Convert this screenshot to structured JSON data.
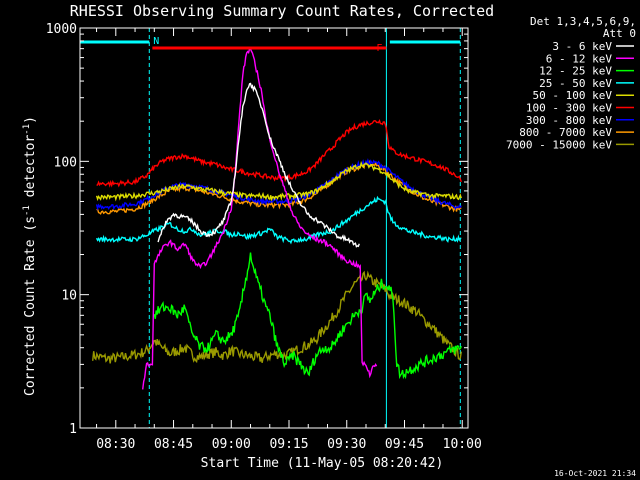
{
  "chart_data": {
    "type": "line",
    "title": "RHESSI Observing Summary Count Rates, Corrected",
    "xlabel": "Start Time (11-May-05 08:20:42)",
    "ylabel_main": "Corrected Count Rate (s",
    "ylabel_sup1": "-1",
    "ylabel_mid": " detector",
    "ylabel_sup2": "-1",
    "ylabel_end": ")",
    "ylog": true,
    "ylim": [
      1,
      1000
    ],
    "xlim_min": [
      20.7,
      121.5
    ],
    "x_unit": "minutes after 08:00",
    "xticks": [
      {
        "label": "08:30",
        "min": 30
      },
      {
        "label": "08:45",
        "min": 45
      },
      {
        "label": "09:00",
        "min": 60
      },
      {
        "label": "09:15",
        "min": 75
      },
      {
        "label": "09:30",
        "min": 90
      },
      {
        "label": "09:45",
        "min": 105
      },
      {
        "label": "10:00",
        "min": 120
      }
    ],
    "yticks": [
      {
        "label": "1",
        "val": 1
      },
      {
        "label": "10",
        "val": 10
      },
      {
        "label": "100",
        "val": 100
      },
      {
        "label": "1000",
        "val": 1000
      }
    ],
    "legend_header": [
      "Det 1,3,4,5,6,9,",
      "Att 0"
    ],
    "series": [
      {
        "name": "3 - 6 keV",
        "color": "#ffffff",
        "x": [
          20.7,
          38,
          39.5,
          41,
          43,
          45,
          48,
          50,
          52,
          54,
          56,
          58,
          60,
          61,
          62,
          63,
          64,
          65,
          66,
          67,
          68,
          69,
          70,
          72,
          74,
          76,
          78,
          80,
          83,
          86,
          88,
          90,
          92,
          93.5,
          94.5,
          95,
          98,
          101
        ],
        "y": [
          null,
          null,
          null,
          25,
          35,
          40,
          38,
          35,
          30,
          28,
          30,
          36,
          50,
          80,
          150,
          250,
          350,
          380,
          350,
          300,
          250,
          200,
          150,
          110,
          80,
          60,
          48,
          40,
          35,
          30,
          27,
          26,
          24,
          23,
          null,
          null,
          null,
          null
        ]
      },
      {
        "name": "6 - 12 keV",
        "color": "#ff00ff",
        "x": [
          20.7,
          36,
          37,
          38,
          39.5,
          40,
          42,
          44,
          46,
          48,
          50,
          52,
          54,
          56,
          58,
          60,
          61,
          62,
          63,
          64,
          65,
          66,
          67,
          68,
          69,
          70,
          72,
          74,
          76,
          78,
          80,
          82,
          84,
          86,
          88,
          90,
          92,
          93.5,
          94,
          95,
          96,
          97,
          98
        ],
        "y": [
          null,
          null,
          2,
          3,
          3,
          17,
          22,
          25,
          22,
          24,
          18,
          16,
          18,
          23,
          30,
          45,
          80,
          200,
          450,
          650,
          700,
          560,
          430,
          320,
          200,
          150,
          90,
          60,
          40,
          32,
          28,
          26,
          25,
          23,
          20,
          18,
          17,
          16,
          3,
          3,
          2.5,
          3,
          3
        ]
      },
      {
        "name": "12 - 25 keV",
        "color": "#00ff00",
        "x": [
          20.7,
          38,
          40,
          42,
          44,
          46,
          48,
          49,
          50,
          52,
          54,
          56,
          58,
          60,
          62,
          63,
          64,
          65,
          66,
          67,
          68,
          69,
          70,
          72,
          74,
          76,
          78,
          80,
          82,
          84,
          86,
          88,
          90,
          92,
          94,
          95,
          96,
          97,
          98,
          99,
          100,
          101,
          102,
          103,
          104,
          106,
          108,
          110,
          112,
          114,
          116,
          118,
          120
        ],
        "y": [
          null,
          null,
          7,
          8,
          8,
          7,
          8,
          6,
          5,
          4,
          4,
          5,
          4.5,
          5,
          7,
          10,
          14,
          20,
          15,
          12,
          10,
          8,
          7,
          4,
          3,
          3.5,
          3,
          2.5,
          3.5,
          4,
          4,
          5,
          6,
          7,
          8,
          10,
          9,
          10,
          11,
          12,
          12,
          11,
          10,
          3,
          2.5,
          2.7,
          2.9,
          3.1,
          3.3,
          3.5,
          3.7,
          3.9,
          4.0
        ]
      },
      {
        "name": "25 - 50 keV",
        "color": "#00ffff",
        "x": [
          20.7,
          25,
          30,
          35,
          38,
          40,
          42,
          44,
          46,
          48,
          50,
          52,
          54,
          56,
          58,
          60,
          62,
          64,
          66,
          68,
          70,
          72,
          74,
          76,
          78,
          80,
          82,
          84,
          86,
          88,
          90,
          92,
          94,
          96,
          98,
          100,
          101,
          102,
          104,
          106,
          108,
          110,
          112,
          114,
          116,
          118,
          120
        ],
        "y": [
          null,
          26,
          26,
          26,
          28,
          30,
          32,
          34,
          31,
          30,
          31,
          28,
          29,
          30,
          30,
          28,
          29,
          27,
          28,
          29,
          31,
          27,
          26,
          25,
          26,
          26,
          28,
          29,
          30,
          33,
          36,
          40,
          44,
          48,
          52,
          50,
          40,
          35,
          32,
          30,
          29,
          28,
          27,
          27,
          26,
          26,
          27
        ]
      },
      {
        "name": "50 - 100 keV",
        "color": "#dddd00",
        "x": [
          20.7,
          25,
          30,
          35,
          38,
          40,
          42,
          44,
          46,
          48,
          50,
          52,
          54,
          56,
          58,
          60,
          62,
          64,
          66,
          68,
          70,
          72,
          74,
          76,
          78,
          80,
          82,
          84,
          86,
          88,
          90,
          92,
          94,
          96,
          98,
          100,
          102,
          104,
          106,
          108,
          110,
          112,
          114,
          116,
          118,
          120
        ],
        "y": [
          null,
          54,
          54,
          55,
          57,
          58,
          60,
          62,
          64,
          65,
          64,
          62,
          61,
          60,
          58,
          57,
          56,
          55,
          55,
          55,
          54,
          54,
          55,
          55,
          56,
          57,
          60,
          65,
          70,
          78,
          85,
          90,
          95,
          92,
          88,
          82,
          72,
          65,
          60,
          58,
          57,
          55,
          55,
          55,
          54,
          54
        ]
      },
      {
        "name": "100 - 300 keV",
        "color": "#ff0000",
        "x": [
          20.7,
          25,
          30,
          35,
          38,
          40,
          42,
          44,
          46,
          48,
          50,
          52,
          54,
          56,
          58,
          60,
          62,
          64,
          66,
          68,
          70,
          72,
          74,
          76,
          78,
          80,
          82,
          84,
          86,
          88,
          90,
          92,
          94,
          96,
          98,
          100,
          101,
          102,
          104,
          106,
          108,
          110,
          112,
          114,
          116,
          118,
          120
        ],
        "y": [
          null,
          68,
          68,
          70,
          78,
          90,
          100,
          105,
          108,
          110,
          105,
          100,
          97,
          95,
          90,
          87,
          85,
          82,
          80,
          78,
          76,
          75,
          75,
          77,
          80,
          85,
          95,
          110,
          125,
          145,
          165,
          180,
          190,
          195,
          200,
          195,
          130,
          120,
          112,
          108,
          104,
          100,
          96,
          92,
          86,
          80,
          72
        ]
      },
      {
        "name": "300 - 800 keV",
        "color": "#0000ff",
        "x": [
          20.7,
          25,
          30,
          35,
          38,
          40,
          42,
          44,
          46,
          48,
          50,
          52,
          54,
          56,
          58,
          60,
          62,
          64,
          66,
          68,
          70,
          72,
          74,
          76,
          78,
          80,
          82,
          84,
          86,
          88,
          90,
          92,
          94,
          96,
          98,
          100,
          102,
          104,
          106,
          108,
          110,
          112,
          114,
          116,
          118,
          120
        ],
        "y": [
          null,
          46,
          46,
          48,
          52,
          56,
          60,
          64,
          66,
          67,
          66,
          64,
          62,
          60,
          58,
          56,
          54,
          52,
          51,
          50,
          50,
          50,
          50,
          51,
          53,
          56,
          60,
          66,
          72,
          80,
          87,
          92,
          96,
          98,
          97,
          90,
          80,
          72,
          65,
          60,
          56,
          53,
          50,
          48,
          46,
          45
        ]
      },
      {
        "name": "800 - 7000 keV",
        "color": "#ff9900",
        "x": [
          20.7,
          25,
          30,
          35,
          38,
          40,
          42,
          44,
          46,
          48,
          50,
          52,
          54,
          56,
          58,
          60,
          62,
          64,
          66,
          68,
          70,
          72,
          74,
          76,
          78,
          80,
          82,
          84,
          86,
          88,
          90,
          92,
          94,
          96,
          98,
          100,
          102,
          104,
          106,
          108,
          110,
          112,
          114,
          116,
          118,
          120
        ],
        "y": [
          null,
          42,
          42,
          44,
          48,
          52,
          56,
          60,
          62,
          63,
          62,
          60,
          58,
          56,
          54,
          52,
          50,
          49,
          48,
          47,
          47,
          47,
          47,
          48,
          50,
          53,
          57,
          63,
          70,
          78,
          84,
          88,
          92,
          95,
          93,
          86,
          76,
          68,
          62,
          57,
          53,
          50,
          48,
          46,
          44,
          43
        ]
      },
      {
        "name": "7000 - 15000 keV",
        "color": "#999900",
        "x": [
          20.7,
          24,
          28,
          32,
          36,
          38,
          40,
          42,
          44,
          46,
          48,
          50,
          52,
          54,
          56,
          58,
          60,
          62,
          64,
          66,
          68,
          70,
          72,
          74,
          76,
          78,
          80,
          82,
          84,
          86,
          88,
          90,
          92,
          94,
          95,
          96,
          98,
          100,
          101,
          102,
          104,
          106,
          108,
          110,
          112,
          114,
          116,
          118,
          120
        ],
        "y": [
          null,
          3.5,
          3.3,
          3.4,
          3.6,
          3.8,
          4.5,
          4.0,
          3.6,
          3.8,
          4.0,
          3.5,
          3.4,
          3.6,
          3.7,
          3.5,
          3.8,
          3.6,
          3.5,
          3.4,
          3.3,
          3.5,
          3.6,
          3.5,
          3.7,
          4.0,
          4.2,
          4.6,
          5.5,
          6.5,
          8,
          10,
          12,
          13,
          14,
          13,
          12,
          11,
          10,
          9.5,
          9,
          8.2,
          7.5,
          6.5,
          5.8,
          5,
          4.3,
          3.8,
          3.4
        ]
      }
    ],
    "flags": [
      {
        "label": "N",
        "color": "#00ffff",
        "spans": [
          [
            20.7,
            38.7
          ],
          [
            101.2,
            119.5
          ]
        ]
      },
      {
        "label": "F",
        "color": "#ff0000",
        "spans": [
          [
            39.5,
            100.3
          ]
        ]
      }
    ],
    "dashed_markers_min": [
      38.7,
      119.5
    ],
    "solid_markers_min": [
      20.7,
      100.3
    ]
  },
  "timestamp": "16-Oct-2021 21:34"
}
